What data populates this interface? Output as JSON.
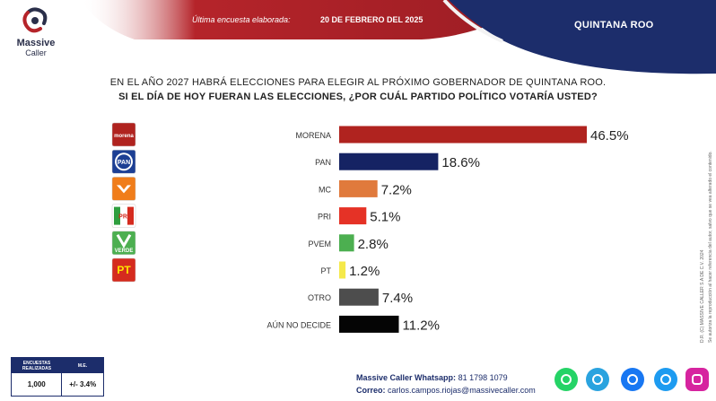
{
  "brand": {
    "name_line1": "Massive",
    "name_line2": "Caller"
  },
  "header": {
    "survey_label": "Última encuesta elaborada:",
    "survey_date": "20 DE FEBRERO DEL 2025",
    "region": "QUINTANA ROO"
  },
  "question": {
    "line1": "EN EL AÑO 2027 HABRÁ ELECCIONES PARA ELEGIR AL PRÓXIMO GOBERNADOR DE QUINTANA ROO.",
    "line2": "SI EL DÍA DE HOY FUERAN LAS ELECCIONES, ¿POR CUÁL PARTIDO POLÍTICO VOTARÍA USTED?"
  },
  "chart_data": {
    "type": "bar",
    "orientation": "horizontal",
    "categories": [
      "MORENA",
      "PAN",
      "MC",
      "PRI",
      "PVEM",
      "PT",
      "OTRO",
      "AÚN NO DECIDE"
    ],
    "values": [
      46.5,
      18.6,
      7.2,
      5.1,
      2.8,
      1.2,
      7.4,
      11.2
    ],
    "value_labels": [
      "46.5%",
      "18.6%",
      "7.2%",
      "5.1%",
      "2.8%",
      "1.2%",
      "7.4%",
      "11.2%"
    ],
    "colors": [
      "#b0231f",
      "#152363",
      "#e07a3c",
      "#e53226",
      "#4caf50",
      "#f5e94a",
      "#4d4d4d",
      "#050505"
    ],
    "logos": [
      {
        "name": "morena-logo",
        "text": "morena",
        "bg": "#b0231f",
        "fg": "#ffffff"
      },
      {
        "name": "pan-logo",
        "text": "PAN",
        "bg": "#1c3f94",
        "fg": "#ffffff"
      },
      {
        "name": "mc-logo",
        "text": "",
        "bg": "#f07d1a",
        "fg": "#ffffff"
      },
      {
        "name": "pri-logo",
        "text": "PRI",
        "bg": "#ffffff",
        "fg": "#d52b1e"
      },
      {
        "name": "pvem-logo",
        "text": "VERDE",
        "bg": "#4caf50",
        "fg": "#ffffff"
      },
      {
        "name": "pt-logo",
        "text": "PT",
        "bg": "#d52b1e",
        "fg": "#ffe600"
      }
    ],
    "xlim": [
      0,
      50
    ],
    "grid": false,
    "legend": "none"
  },
  "side_note": {
    "line1": "D.R. (C) MASSIVE CALLER S.A DE C.V. 2024",
    "line2": "Se autoriza la reproducción al hacer referencia del autor, salvo que se vea alterado el contenido."
  },
  "stats": {
    "label_surveys": "ENCUESTAS REALIZADAS",
    "label_me": "M.E.",
    "surveys": "1,000",
    "me": "+/- 3.4%"
  },
  "contact": {
    "whatsapp_label": "Massive Caller Whatsapp:",
    "whatsapp": "81 1798 1079",
    "email_label": "Correo:",
    "email": "carlos.campos.riojas@massivecaller.com"
  },
  "social_icons": [
    {
      "name": "whatsapp-icon",
      "color": "#25d366"
    },
    {
      "name": "telegram-icon",
      "color": "#2aa3df"
    },
    {
      "name": "facebook-icon",
      "color": "#1877f2"
    },
    {
      "name": "twitter-icon",
      "color": "#1d9bf0"
    },
    {
      "name": "instagram-icon",
      "color": "#d6249f"
    }
  ]
}
